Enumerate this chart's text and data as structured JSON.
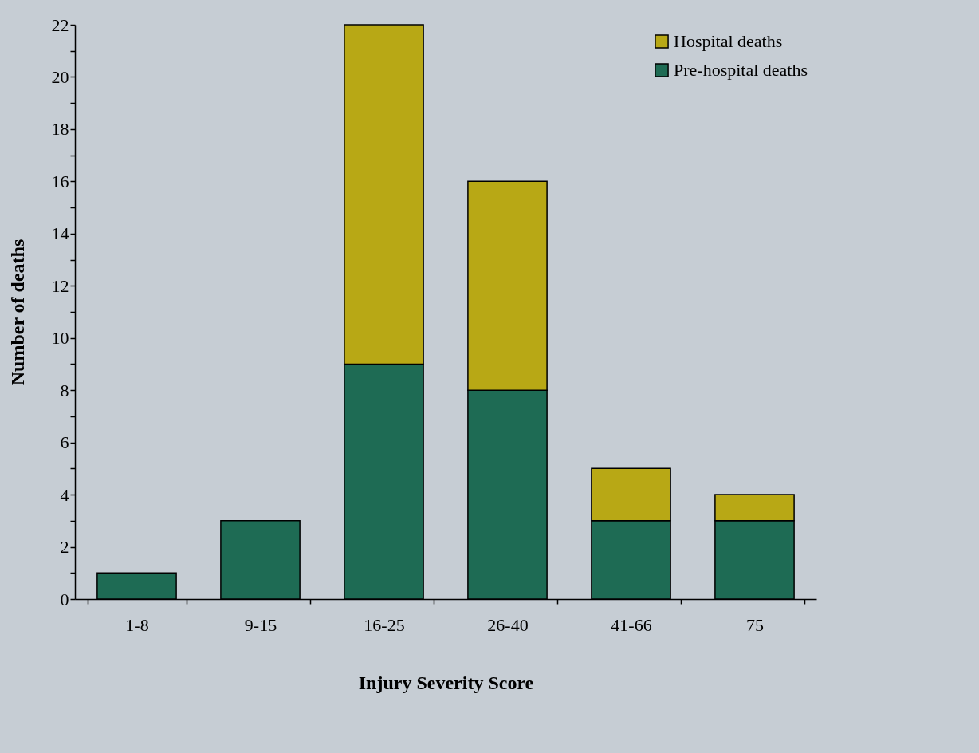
{
  "chart_data": {
    "type": "bar",
    "stacked": true,
    "xlabel": "Injury Severity Score",
    "ylabel": "Number of deaths",
    "categories": [
      "1-8",
      "9-15",
      "16-25",
      "26-40",
      "41-66",
      "75"
    ],
    "series": [
      {
        "name": "Pre-hospital deaths",
        "color": "#1e6b54",
        "values": [
          1,
          3,
          9,
          8,
          3,
          3
        ]
      },
      {
        "name": "Hospital deaths",
        "color": "#b8a815",
        "values": [
          null,
          null,
          13,
          8,
          2,
          1
        ]
      }
    ],
    "ylim": [
      0,
      22
    ],
    "yticks": [
      0,
      {
        "value": 1,
        "label": null
      },
      2,
      {
        "value": 3,
        "label": null
      },
      4,
      {
        "value": 5,
        "label": null
      },
      6,
      {
        "value": 7,
        "label": null
      },
      8,
      {
        "value": 9,
        "label": null
      },
      10,
      {
        "value": 11,
        "label": null
      },
      12,
      {
        "value": 13,
        "label": null
      },
      14,
      {
        "value": 15,
        "label": null
      },
      16,
      {
        "value": 17,
        "label": null
      },
      18,
      {
        "value": 19,
        "label": null
      },
      20,
      {
        "value": 21,
        "label": null
      },
      22
    ],
    "legend": "top right",
    "grid": false
  }
}
